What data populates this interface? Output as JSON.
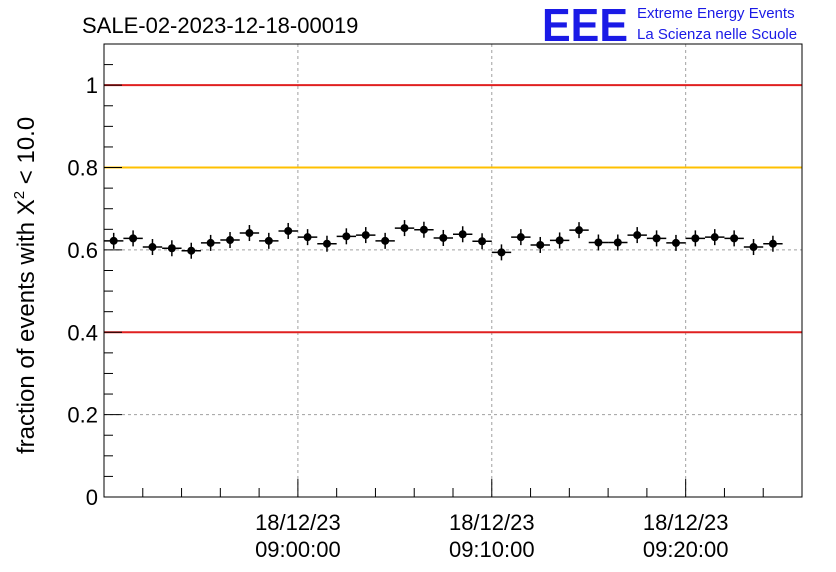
{
  "header": {
    "run_title": "SALE-02-2023-12-18-00019",
    "logo_text": "EEE",
    "logo_line1": "Extreme Energy Events",
    "logo_line2": "La Scienza nelle Scuole"
  },
  "chart_data": {
    "type": "scatter",
    "title": "SALE-02-2023-12-18-00019",
    "ylabel": "fraction of events with χ² < 10.0",
    "ylabel_parts": {
      "prefix": "fraction of events with ",
      "chi": "Χ",
      "sup": "2",
      "suffix": " < 10.0"
    },
    "ylim": [
      0,
      1.1
    ],
    "xlim": [
      "08:50:00",
      "09:26:00"
    ],
    "grid": true,
    "y_ticks": [
      0,
      0.2,
      0.4,
      0.6,
      0.8,
      1
    ],
    "y_tick_labels": [
      "0",
      "0.2",
      "0.4",
      "0.6",
      "0.8",
      "1"
    ],
    "x_ticks": [
      {
        "time": "09:00:00",
        "date": "18/12/23",
        "clock": "09:00:00"
      },
      {
        "time": "09:10:00",
        "date": "18/12/23",
        "clock": "09:10:00"
      },
      {
        "time": "09:20:00",
        "date": "18/12/23",
        "clock": "09:20:00"
      }
    ],
    "reference_lines": [
      {
        "y": 1.0,
        "color": "#e02020"
      },
      {
        "y": 0.8,
        "color": "#ffc000"
      },
      {
        "y": 0.4,
        "color": "#e02020"
      }
    ],
    "bin_width_minutes": 1,
    "series": [
      {
        "marker_color": "#000000",
        "points": [
          {
            "x": "08:50:30",
            "y": 0.622
          },
          {
            "x": "08:51:30",
            "y": 0.628
          },
          {
            "x": "08:52:30",
            "y": 0.607
          },
          {
            "x": "08:53:30",
            "y": 0.604
          },
          {
            "x": "08:54:30",
            "y": 0.598
          },
          {
            "x": "08:55:30",
            "y": 0.617
          },
          {
            "x": "08:56:30",
            "y": 0.624
          },
          {
            "x": "08:57:30",
            "y": 0.641
          },
          {
            "x": "08:58:30",
            "y": 0.622
          },
          {
            "x": "08:59:30",
            "y": 0.646
          },
          {
            "x": "09:00:30",
            "y": 0.631
          },
          {
            "x": "09:01:30",
            "y": 0.615
          },
          {
            "x": "09:02:30",
            "y": 0.633
          },
          {
            "x": "09:03:30",
            "y": 0.636
          },
          {
            "x": "09:04:30",
            "y": 0.622
          },
          {
            "x": "09:05:30",
            "y": 0.653
          },
          {
            "x": "09:06:30",
            "y": 0.649
          },
          {
            "x": "09:07:30",
            "y": 0.629
          },
          {
            "x": "09:08:30",
            "y": 0.638
          },
          {
            "x": "09:09:30",
            "y": 0.621
          },
          {
            "x": "09:10:30",
            "y": 0.594
          },
          {
            "x": "09:11:30",
            "y": 0.631
          },
          {
            "x": "09:12:30",
            "y": 0.612
          },
          {
            "x": "09:13:30",
            "y": 0.623
          },
          {
            "x": "09:14:30",
            "y": 0.648
          },
          {
            "x": "09:15:30",
            "y": 0.618
          },
          {
            "x": "09:16:30",
            "y": 0.618
          },
          {
            "x": "09:17:30",
            "y": 0.636
          },
          {
            "x": "09:18:30",
            "y": 0.628
          },
          {
            "x": "09:19:30",
            "y": 0.617
          },
          {
            "x": "09:20:30",
            "y": 0.628
          },
          {
            "x": "09:21:30",
            "y": 0.631
          },
          {
            "x": "09:22:30",
            "y": 0.628
          },
          {
            "x": "09:23:30",
            "y": 0.607
          },
          {
            "x": "09:24:30",
            "y": 0.615
          }
        ]
      }
    ]
  }
}
